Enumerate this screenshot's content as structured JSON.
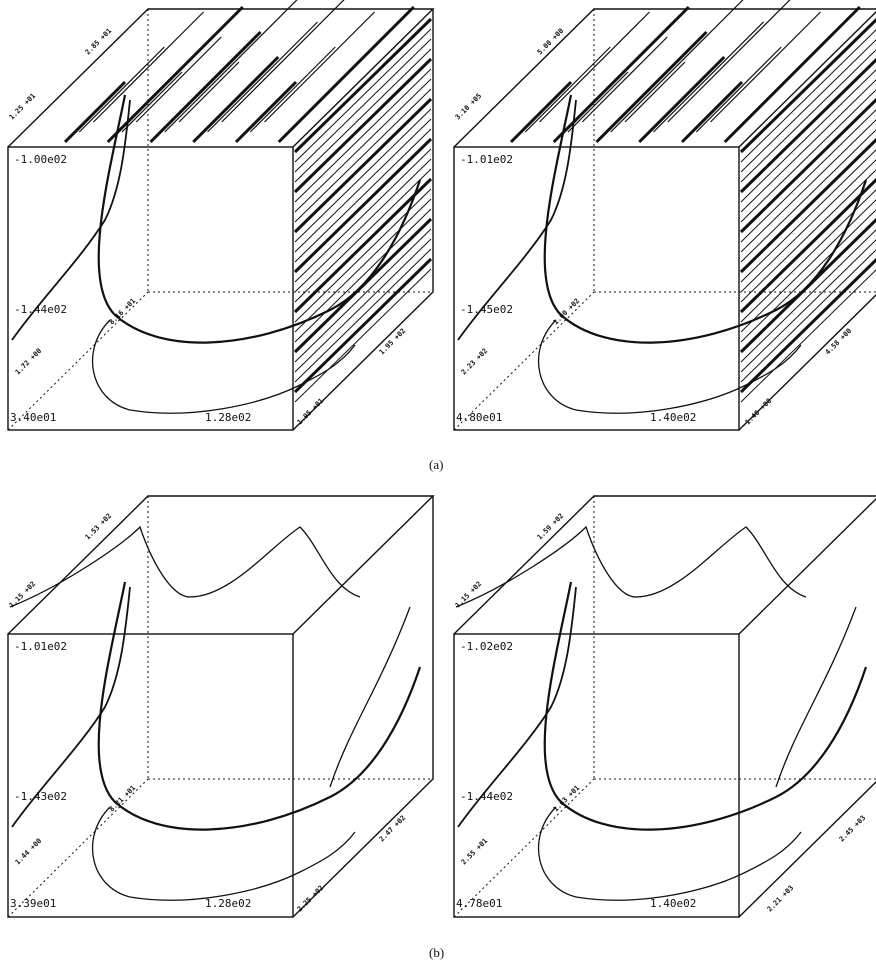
{
  "panels": [
    {
      "z_top": "-1.00e02",
      "z_mid": "-1.44e02",
      "x_min": "3.40e01",
      "x_max": "1.28e02",
      "top_a": "1.25 +01",
      "top_b": "2.85 +01",
      "diag_a": "1.72 +00",
      "diag_b": "8.16 +01",
      "side_a": "1.95 +01",
      "side_b": "1.95 +02",
      "hatched": true
    },
    {
      "z_top": "-1.01e02",
      "z_mid": "-1.45e02",
      "x_min": "4.80e01",
      "x_max": "1.40e02",
      "top_a": "3.10 +05",
      "top_b": "5.00 +00",
      "diag_a": "2.23 +02",
      "diag_b": "1.00 +02",
      "side_a": "1.40 +00",
      "side_b": "4.58 +00",
      "hatched": true
    },
    {
      "z_top": "-1.01e02",
      "z_mid": "-1.43e02",
      "x_min": "3.39e01",
      "x_max": "1.28e02",
      "top_a": "1.15 +02",
      "top_b": "1.53 +02",
      "diag_a": "1.44 +00",
      "diag_b": "8.21 +01",
      "side_a": "2.25 +02",
      "side_b": "2.47 +02",
      "hatched": false
    },
    {
      "z_top": "-1.02e02",
      "z_mid": "-1.44e02",
      "x_min": "4.78e01",
      "x_max": "1.40e02",
      "top_a": "1.15 +02",
      "top_b": "1.59 +02",
      "diag_a": "2.55 +01",
      "diag_b": "1.63 +01",
      "side_a": "2.21 +03",
      "side_b": "2.45 +03",
      "hatched": false
    }
  ],
  "captions": {
    "a": "(a)",
    "b": "(b)"
  }
}
